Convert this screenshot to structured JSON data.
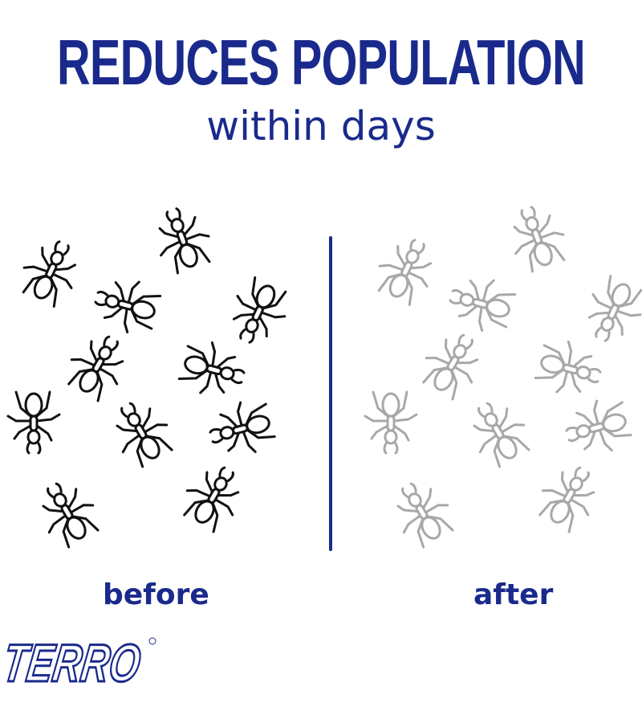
{
  "headline": "REDUCES POPULATION",
  "subheadline": "within days",
  "panels": {
    "before": {
      "label": "before",
      "ant_count": 11,
      "ant_color": "#111111"
    },
    "after": {
      "label": "after",
      "ant_count": 11,
      "ant_color": "#a8a8a8"
    }
  },
  "brand": {
    "logo_text": "TERRO",
    "color": "#1a2a8c"
  },
  "colors": {
    "accent": "#1a2a8c"
  }
}
